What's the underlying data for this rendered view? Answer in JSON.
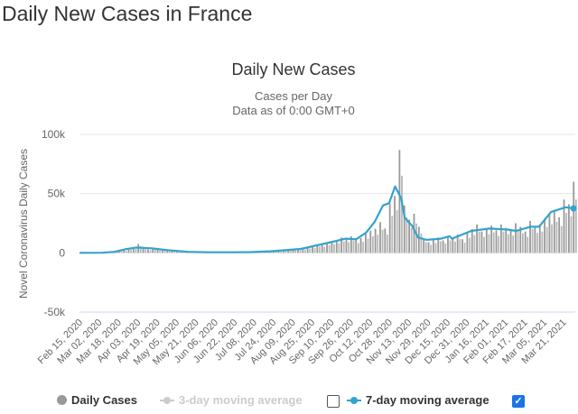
{
  "page_title": "Daily New Cases in France",
  "chart_data": {
    "type": "bar",
    "title": "Daily New Cases",
    "subtitle_lines": [
      "Cases per Day",
      "Data as of 0:00 GMT+0"
    ],
    "ylabel": "Novel Coronavirus Daily Cases",
    "ylim": [
      -50000,
      100000
    ],
    "y_ticks": [
      {
        "v": 100000,
        "label": "100k"
      },
      {
        "v": 50000,
        "label": "50k"
      },
      {
        "v": 0,
        "label": "0"
      },
      {
        "v": -50000,
        "label": "-50k"
      }
    ],
    "x_range": [
      "2020-02-15",
      "2021-03-31"
    ],
    "x_tick_labels": [
      "Feb 15, 2020",
      "Mar 02, 2020",
      "Mar 18, 2020",
      "Apr 03, 2020",
      "Apr 19, 2020",
      "May 05, 2020",
      "May 21, 2020",
      "Jun 06, 2020",
      "Jun 22, 2020",
      "Jul 08, 2020",
      "Jul 24, 2020",
      "Aug 09, 2020",
      "Aug 25, 2020",
      "Sep 10, 2020",
      "Sep 26, 2020",
      "Oct 12, 2020",
      "Oct 28, 2020",
      "Nov 13, 2020",
      "Nov 29, 2020",
      "Dec 15, 2020",
      "Dec 31, 2020",
      "Jan 16, 2021",
      "Feb 01, 2021",
      "Feb 17, 2021",
      "Mar 05, 2021",
      "Mar 21, 2021"
    ],
    "grid": true,
    "legend_position": "bottom",
    "series": [
      {
        "name": "Daily Cases",
        "type": "bar",
        "color": "#999999",
        "start": "2020-02-15",
        "step_days": 4,
        "values": [
          0,
          0,
          0,
          12,
          90,
          290,
          370,
          1200,
          1800,
          2400,
          3800,
          4600,
          7500,
          4300,
          3100,
          4000,
          2700,
          2200,
          1600,
          1100,
          900,
          700,
          500,
          600,
          350,
          500,
          400,
          300,
          550,
          400,
          450,
          500,
          600,
          700,
          650,
          800,
          900,
          1100,
          1000,
          1300,
          1400,
          1700,
          1900,
          2300,
          2800,
          3000,
          3600,
          4800,
          5400,
          7000,
          6800,
          8600,
          9800,
          10500,
          13000,
          12000,
          14000,
          11000,
          12500,
          16000,
          18700,
          20300,
          26000,
          20500,
          41600,
          48000,
          86800,
          40000,
          28000,
          33000,
          22000,
          12000,
          9000,
          11000,
          13000,
          10500,
          14000,
          12700,
          15500,
          11500,
          17000,
          20000,
          24000,
          18000,
          21000,
          23000,
          19000,
          24000,
          21000,
          19500,
          25000,
          22000,
          18000,
          27000,
          22500,
          24000,
          29000,
          32000,
          35000,
          30000,
          45000,
          41000,
          60000
        ]
      },
      {
        "name": "3-day moving average",
        "type": "line",
        "color": "#cccccc",
        "visible": false,
        "checked": false
      },
      {
        "name": "7-day moving average",
        "type": "line",
        "color": "#33a3cc",
        "visible": true,
        "checked": true,
        "points": [
          [
            "2020-02-15",
            0
          ],
          [
            "2020-03-05",
            100
          ],
          [
            "2020-03-15",
            900
          ],
          [
            "2020-03-25",
            3200
          ],
          [
            "2020-04-02",
            4500
          ],
          [
            "2020-04-15",
            3800
          ],
          [
            "2020-04-28",
            2200
          ],
          [
            "2020-05-15",
            900
          ],
          [
            "2020-06-01",
            500
          ],
          [
            "2020-06-20",
            450
          ],
          [
            "2020-07-05",
            600
          ],
          [
            "2020-07-22",
            1300
          ],
          [
            "2020-08-16",
            3300
          ],
          [
            "2020-09-10",
            9000
          ],
          [
            "2020-09-22",
            12000
          ],
          [
            "2020-10-01",
            11500
          ],
          [
            "2020-10-09",
            17000
          ],
          [
            "2020-10-16",
            26000
          ],
          [
            "2020-10-23",
            40000
          ],
          [
            "2020-10-28",
            42000
          ],
          [
            "2020-11-02",
            56000
          ],
          [
            "2020-11-07",
            46000
          ],
          [
            "2020-11-10",
            29500
          ],
          [
            "2020-11-16",
            23000
          ],
          [
            "2020-11-21",
            13000
          ],
          [
            "2020-11-28",
            11000
          ],
          [
            "2020-12-10",
            12000
          ],
          [
            "2020-12-17",
            14000
          ],
          [
            "2020-12-19",
            12000
          ],
          [
            "2021-01-04",
            18500
          ],
          [
            "2021-01-19",
            20500
          ],
          [
            "2021-02-03",
            19700
          ],
          [
            "2021-02-10",
            18500
          ],
          [
            "2021-02-22",
            22000
          ],
          [
            "2021-03-01",
            22000
          ],
          [
            "2021-03-11",
            34600
          ],
          [
            "2021-03-23",
            38500
          ],
          [
            "2021-03-31",
            37500
          ]
        ]
      }
    ]
  }
}
